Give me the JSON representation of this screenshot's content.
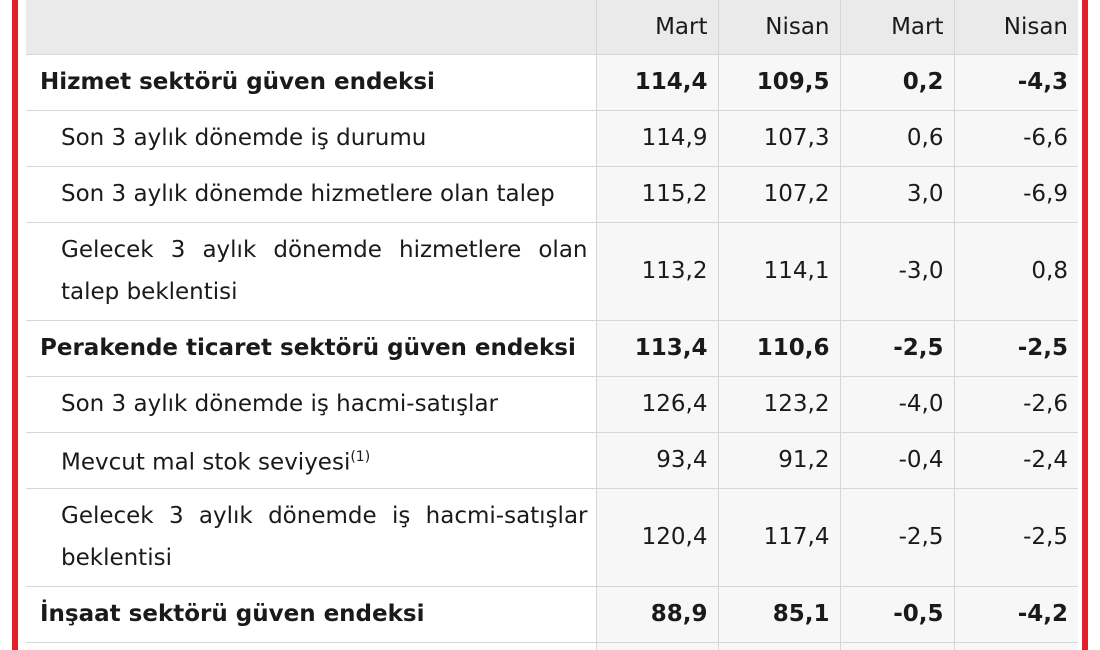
{
  "table": {
    "headers": [
      "",
      "Mart",
      "Nisan",
      "Mart",
      "Nisan"
    ],
    "rows": [
      {
        "label": "Hizmet sektörü güven endeksi",
        "v": [
          "114,4",
          "109,5",
          "0,2",
          "-4,3"
        ]
      },
      {
        "label": "Son 3 aylık dönemde iş durumu",
        "v": [
          "114,9",
          "107,3",
          "0,6",
          "-6,6"
        ]
      },
      {
        "label": "Son 3 aylık dönemde hizmetlere olan talep",
        "v": [
          "115,2",
          "107,2",
          "3,0",
          "-6,9"
        ]
      },
      {
        "label": "Gelecek 3 aylık dönemde hizmetlere olan talep beklentisi",
        "v": [
          "113,2",
          "114,1",
          "-3,0",
          "0,8"
        ]
      },
      {
        "label": "Perakende ticaret sektörü güven endeksi",
        "v": [
          "113,4",
          "110,6",
          "-2,5",
          "-2,5"
        ]
      },
      {
        "label": "Son 3 aylık dönemde iş hacmi-satışlar",
        "v": [
          "126,4",
          "123,2",
          "-4,0",
          "-2,6"
        ]
      },
      {
        "label": "Mevcut mal stok seviyesi",
        "sup": "(1)",
        "v": [
          "93,4",
          "91,2",
          "-0,4",
          "-2,4"
        ]
      },
      {
        "label": "Gelecek 3 aylık dönemde iş hacmi-satışlar beklentisi",
        "v": [
          "120,4",
          "117,4",
          "-2,5",
          "-2,5"
        ]
      },
      {
        "label": "İnşaat sektörü güven endeksi",
        "v": [
          "88,9",
          "85,1",
          "-0,5",
          "-4,2"
        ]
      }
    ]
  },
  "colors": {
    "frame": "#e3202a",
    "header_bg": "#eaeaea"
  }
}
